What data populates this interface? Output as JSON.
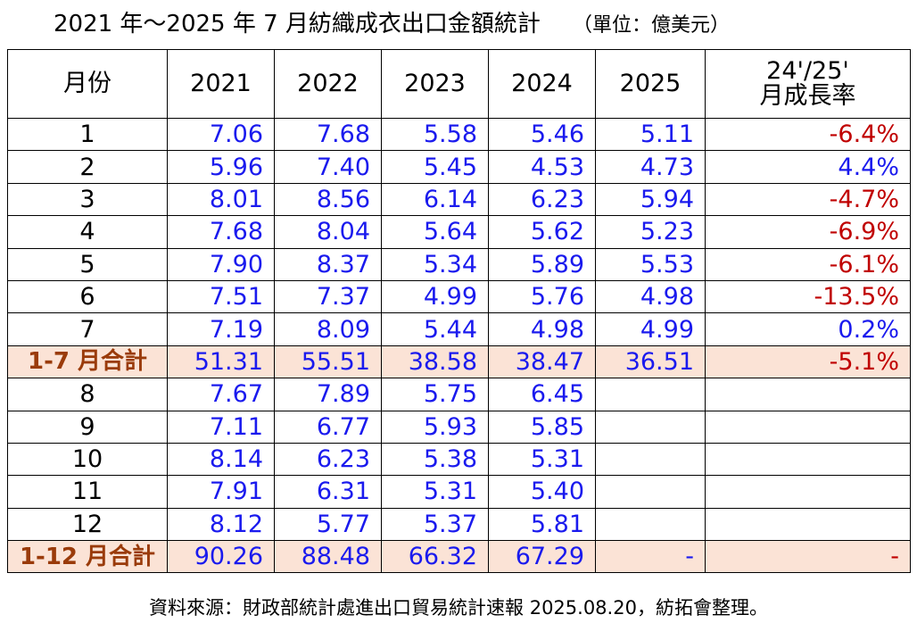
{
  "title": "2021 年～2025 年 7 月紡織成衣出口金額統計",
  "unit": "（單位：億美元）",
  "table": {
    "header": [
      "月份",
      "2021",
      "2022",
      "2023",
      "2024",
      "2025",
      "24'/25'\n月成長率"
    ],
    "rows": [
      [
        "1",
        "7.06",
        "7.68",
        "5.58",
        "5.46",
        "5.11",
        "-6.4%"
      ],
      [
        "2",
        "5.96",
        "7.40",
        "5.45",
        "4.53",
        "4.73",
        "4.4%"
      ],
      [
        "3",
        "8.01",
        "8.56",
        "6.14",
        "6.23",
        "5.94",
        "-4.7%"
      ],
      [
        "4",
        "7.68",
        "8.04",
        "5.64",
        "5.62",
        "5.23",
        "-6.9%"
      ],
      [
        "5",
        "7.90",
        "8.37",
        "5.34",
        "5.89",
        "5.53",
        "-6.1%"
      ],
      [
        "6",
        "7.51",
        "7.37",
        "4.99",
        "5.76",
        "4.98",
        "-13.5%"
      ],
      [
        "7",
        "7.19",
        "8.09",
        "5.44",
        "4.98",
        "4.99",
        "0.2%"
      ],
      [
        "1-7 月合計",
        "51.31",
        "55.51",
        "38.58",
        "38.47",
        "36.51",
        "-5.1%"
      ],
      [
        "8",
        "7.67",
        "7.89",
        "5.75",
        "6.45",
        null,
        null
      ],
      [
        "9",
        "7.11",
        "6.77",
        "5.93",
        "5.85",
        null,
        null
      ],
      [
        "10",
        "8.14",
        "6.23",
        "5.38",
        "5.31",
        null,
        null
      ],
      [
        "11",
        "7.91",
        "6.31",
        "5.31",
        "5.40",
        null,
        null
      ],
      [
        "12",
        "8.12",
        "5.77",
        "5.37",
        "5.81",
        null,
        null
      ],
      [
        "1-12 月合計",
        "90.26",
        "88.48",
        "66.32",
        "67.29",
        "-",
        "-"
      ]
    ]
  },
  "source": "資料來源：財政部統計處進出口貿易統計速報 2025.08.20，紡拓會整理。"
}
